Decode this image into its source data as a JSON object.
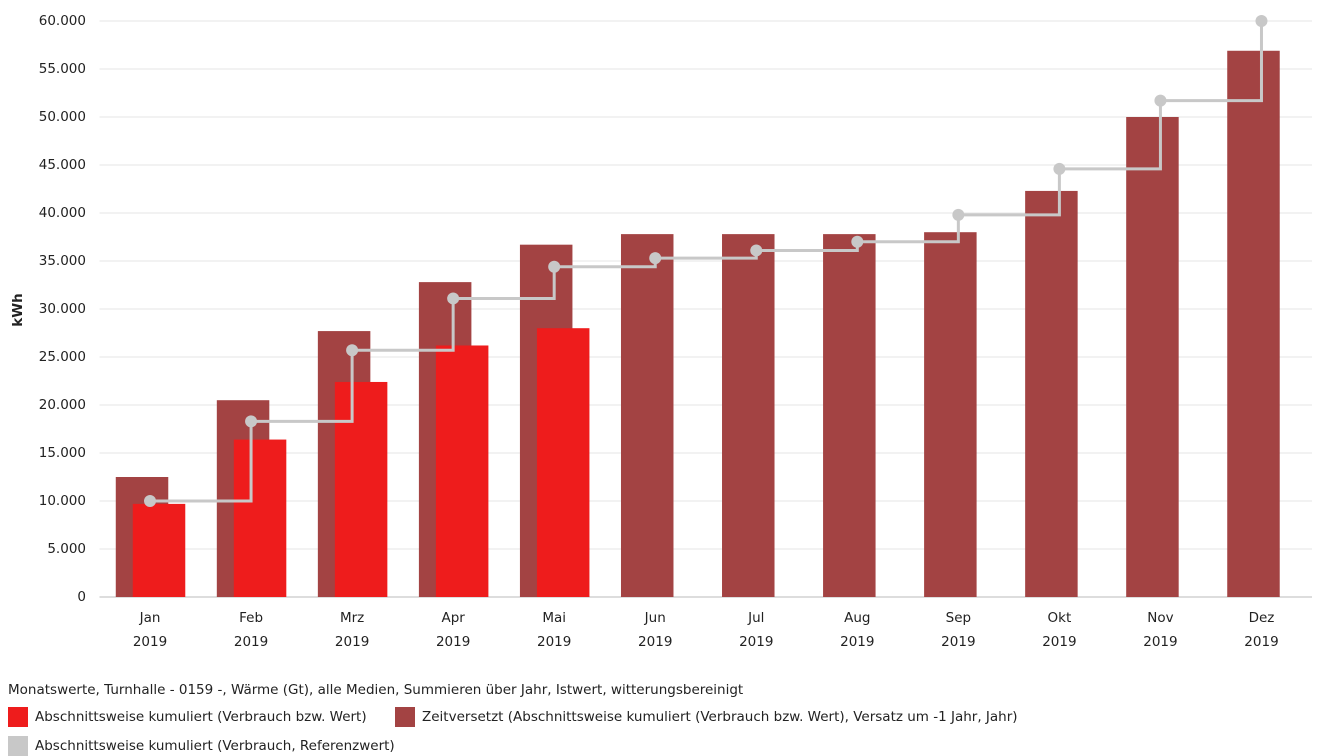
{
  "chart_data": {
    "type": "bar",
    "subtitle": "Monatswerte, Turnhalle - 0159 -, Wärme (Gt), alle Medien, Summieren über Jahr, Istwert, witterungsbereinigt",
    "y_label": "kWh",
    "categories": [
      [
        "Jan",
        "2019"
      ],
      [
        "Feb",
        "2019"
      ],
      [
        "Mrz",
        "2019"
      ],
      [
        "Apr",
        "2019"
      ],
      [
        "Mai",
        "2019"
      ],
      [
        "Jun",
        "2019"
      ],
      [
        "Jul",
        "2019"
      ],
      [
        "Aug",
        "2019"
      ],
      [
        "Sep",
        "2019"
      ],
      [
        "Okt",
        "2019"
      ],
      [
        "Nov",
        "2019"
      ],
      [
        "Dez",
        "2019"
      ]
    ],
    "series": [
      {
        "name": "Zeitversetzt (Abschnittsweise kumuliert (Verbrauch bzw. Wert), Versatz um -1 Jahr, Jahr)",
        "type": "bar",
        "color": "#a34343",
        "values": [
          12500,
          20500,
          27700,
          32800,
          36700,
          37800,
          37800,
          37800,
          38000,
          42300,
          50000,
          56900
        ]
      },
      {
        "name": "Abschnittsweise kumuliert (Verbrauch bzw. Wert)",
        "type": "bar",
        "color": "#ee1c1c",
        "values": [
          9700,
          16400,
          22400,
          26200,
          28000,
          null,
          null,
          null,
          null,
          null,
          null,
          null
        ]
      },
      {
        "name": "Abschnittsweise kumuliert (Verbrauch, Referenzwert)",
        "type": "line",
        "color": "#c8c8c8",
        "values": [
          10000,
          18300,
          25700,
          31100,
          34400,
          35300,
          36100,
          37000,
          39800,
          44600,
          51700,
          60000
        ]
      }
    ],
    "ylim": [
      0,
      60000
    ],
    "yticks": [
      0,
      {
        "value": 5000,
        "label": "5.000"
      },
      {
        "value": 10000,
        "label": "10.000"
      },
      {
        "value": 15000,
        "label": "15.000"
      },
      {
        "value": 20000,
        "label": "20.000"
      },
      {
        "value": 25000,
        "label": "25.000"
      },
      {
        "value": 30000,
        "label": "30.000"
      },
      {
        "value": 35000,
        "label": "35.000"
      },
      {
        "value": 40000,
        "label": "40.000"
      },
      {
        "value": 45000,
        "label": "45.000"
      },
      {
        "value": 50000,
        "label": "50.000"
      },
      {
        "value": 55000,
        "label": "55.000"
      },
      {
        "value": 60000,
        "label": "60.000"
      }
    ],
    "grid": true
  }
}
